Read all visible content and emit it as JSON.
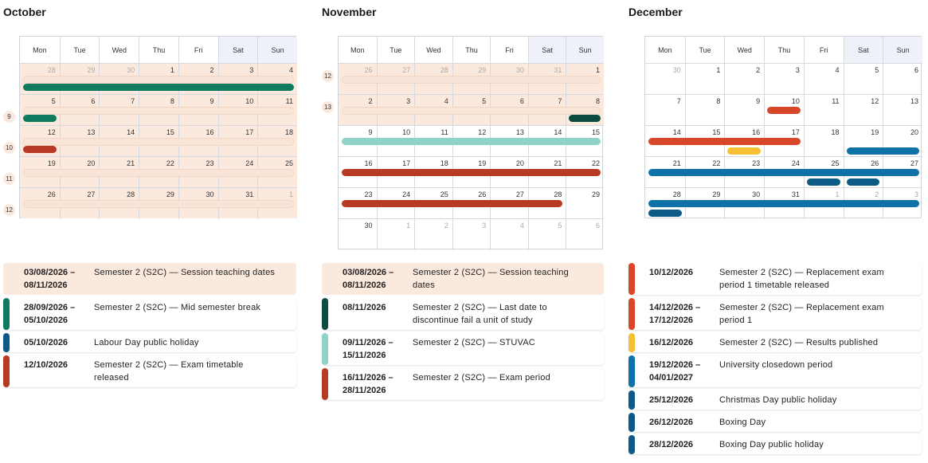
{
  "weekdays": [
    "Mon",
    "Tue",
    "Wed",
    "Thu",
    "Fri",
    "Sat",
    "Sun"
  ],
  "colors": {
    "shade": "#fbe9dd",
    "green": "#0f7a5d",
    "dark_green": "#0d4d3f",
    "red": "#b93a24",
    "orange_red": "#d9472b",
    "teal": "#8fd3c8",
    "blue": "#0e72a8",
    "dark_blue": "#0b5b86",
    "yellow": "#f5c033"
  },
  "months": [
    {
      "title": "October",
      "week_labels": [
        "9",
        "10",
        "11",
        "12"
      ],
      "weeks": [
        {
          "days": [
            "28",
            "29",
            "30",
            "1",
            "2",
            "3",
            "4"
          ]
        },
        {
          "days": [
            "5",
            "6",
            "7",
            "8",
            "9",
            "10",
            "11"
          ]
        },
        {
          "days": [
            "12",
            "13",
            "14",
            "15",
            "16",
            "17",
            "18"
          ]
        },
        {
          "days": [
            "19",
            "20",
            "21",
            "22",
            "23",
            "24",
            "25"
          ]
        },
        {
          "days": [
            "26",
            "27",
            "28",
            "29",
            "30",
            "31",
            "1"
          ]
        }
      ],
      "legend": [
        {
          "date": "03/08/2026 –\n08/11/2026",
          "desc": "Semester 2 (S2C) — Session teaching dates",
          "color": "shade"
        },
        {
          "date": "28/09/2026 –\n05/10/2026",
          "desc": "Semester 2 (S2C) — Mid semester break",
          "color": "green"
        },
        {
          "date": "05/10/2026",
          "desc": "Labour Day public holiday",
          "color": "dark_blue"
        },
        {
          "date": "12/10/2026",
          "desc": "Semester 2 (S2C) — Exam timetable\nreleased",
          "color": "red"
        }
      ]
    },
    {
      "title": "November",
      "week_labels": [
        "12",
        "13"
      ],
      "weeks": [
        {
          "days": [
            "26",
            "27",
            "28",
            "29",
            "30",
            "31",
            "1"
          ]
        },
        {
          "days": [
            "2",
            "3",
            "4",
            "5",
            "6",
            "7",
            "8"
          ]
        },
        {
          "days": [
            "9",
            "10",
            "11",
            "12",
            "13",
            "14",
            "15"
          ]
        },
        {
          "days": [
            "16",
            "17",
            "18",
            "19",
            "20",
            "21",
            "22"
          ]
        },
        {
          "days": [
            "23",
            "24",
            "25",
            "26",
            "27",
            "28",
            "29"
          ]
        },
        {
          "days": [
            "30",
            "1",
            "2",
            "3",
            "4",
            "5",
            "6"
          ]
        }
      ],
      "legend": [
        {
          "date": "03/08/2026 –\n08/11/2026",
          "desc": "Semester 2 (S2C) — Session teaching\ndates",
          "color": "shade"
        },
        {
          "date": "08/11/2026",
          "desc": "Semester 2 (S2C) — Last date to\ndiscontinue fail a unit of study",
          "color": "dark_green"
        },
        {
          "date": "09/11/2026 –\n15/11/2026",
          "desc": "Semester 2 (S2C) — STUVAC",
          "color": "teal"
        },
        {
          "date": "16/11/2026 –\n28/11/2026",
          "desc": "Semester 2 (S2C) — Exam period",
          "color": "red"
        }
      ]
    },
    {
      "title": "December",
      "week_labels": [],
      "weeks": [
        {
          "days": [
            "30",
            "1",
            "2",
            "3",
            "4",
            "5",
            "6"
          ]
        },
        {
          "days": [
            "7",
            "8",
            "9",
            "10",
            "11",
            "12",
            "13"
          ]
        },
        {
          "days": [
            "14",
            "15",
            "16",
            "17",
            "18",
            "19",
            "20"
          ]
        },
        {
          "days": [
            "21",
            "22",
            "23",
            "24",
            "25",
            "26",
            "27"
          ]
        },
        {
          "days": [
            "28",
            "29",
            "30",
            "31",
            "1",
            "2",
            "3"
          ]
        }
      ],
      "legend": [
        {
          "date": "10/12/2026",
          "desc": "Semester 2 (S2C) — Replacement exam\nperiod 1 timetable released",
          "color": "orange_red"
        },
        {
          "date": "14/12/2026 –\n17/12/2026",
          "desc": "Semester 2 (S2C) — Replacement exam\nperiod 1",
          "color": "orange_red"
        },
        {
          "date": "16/12/2026",
          "desc": "Semester 2 (S2C) — Results published",
          "color": "yellow"
        },
        {
          "date": "19/12/2026 –\n04/01/2027",
          "desc": "University closedown period",
          "color": "blue"
        },
        {
          "date": "25/12/2026",
          "desc": "Christmas Day public holiday",
          "color": "dark_blue"
        },
        {
          "date": "26/12/2026",
          "desc": "Boxing Day",
          "color": "dark_blue"
        },
        {
          "date": "28/12/2026",
          "desc": "Boxing Day public holiday",
          "color": "dark_blue"
        }
      ]
    }
  ]
}
